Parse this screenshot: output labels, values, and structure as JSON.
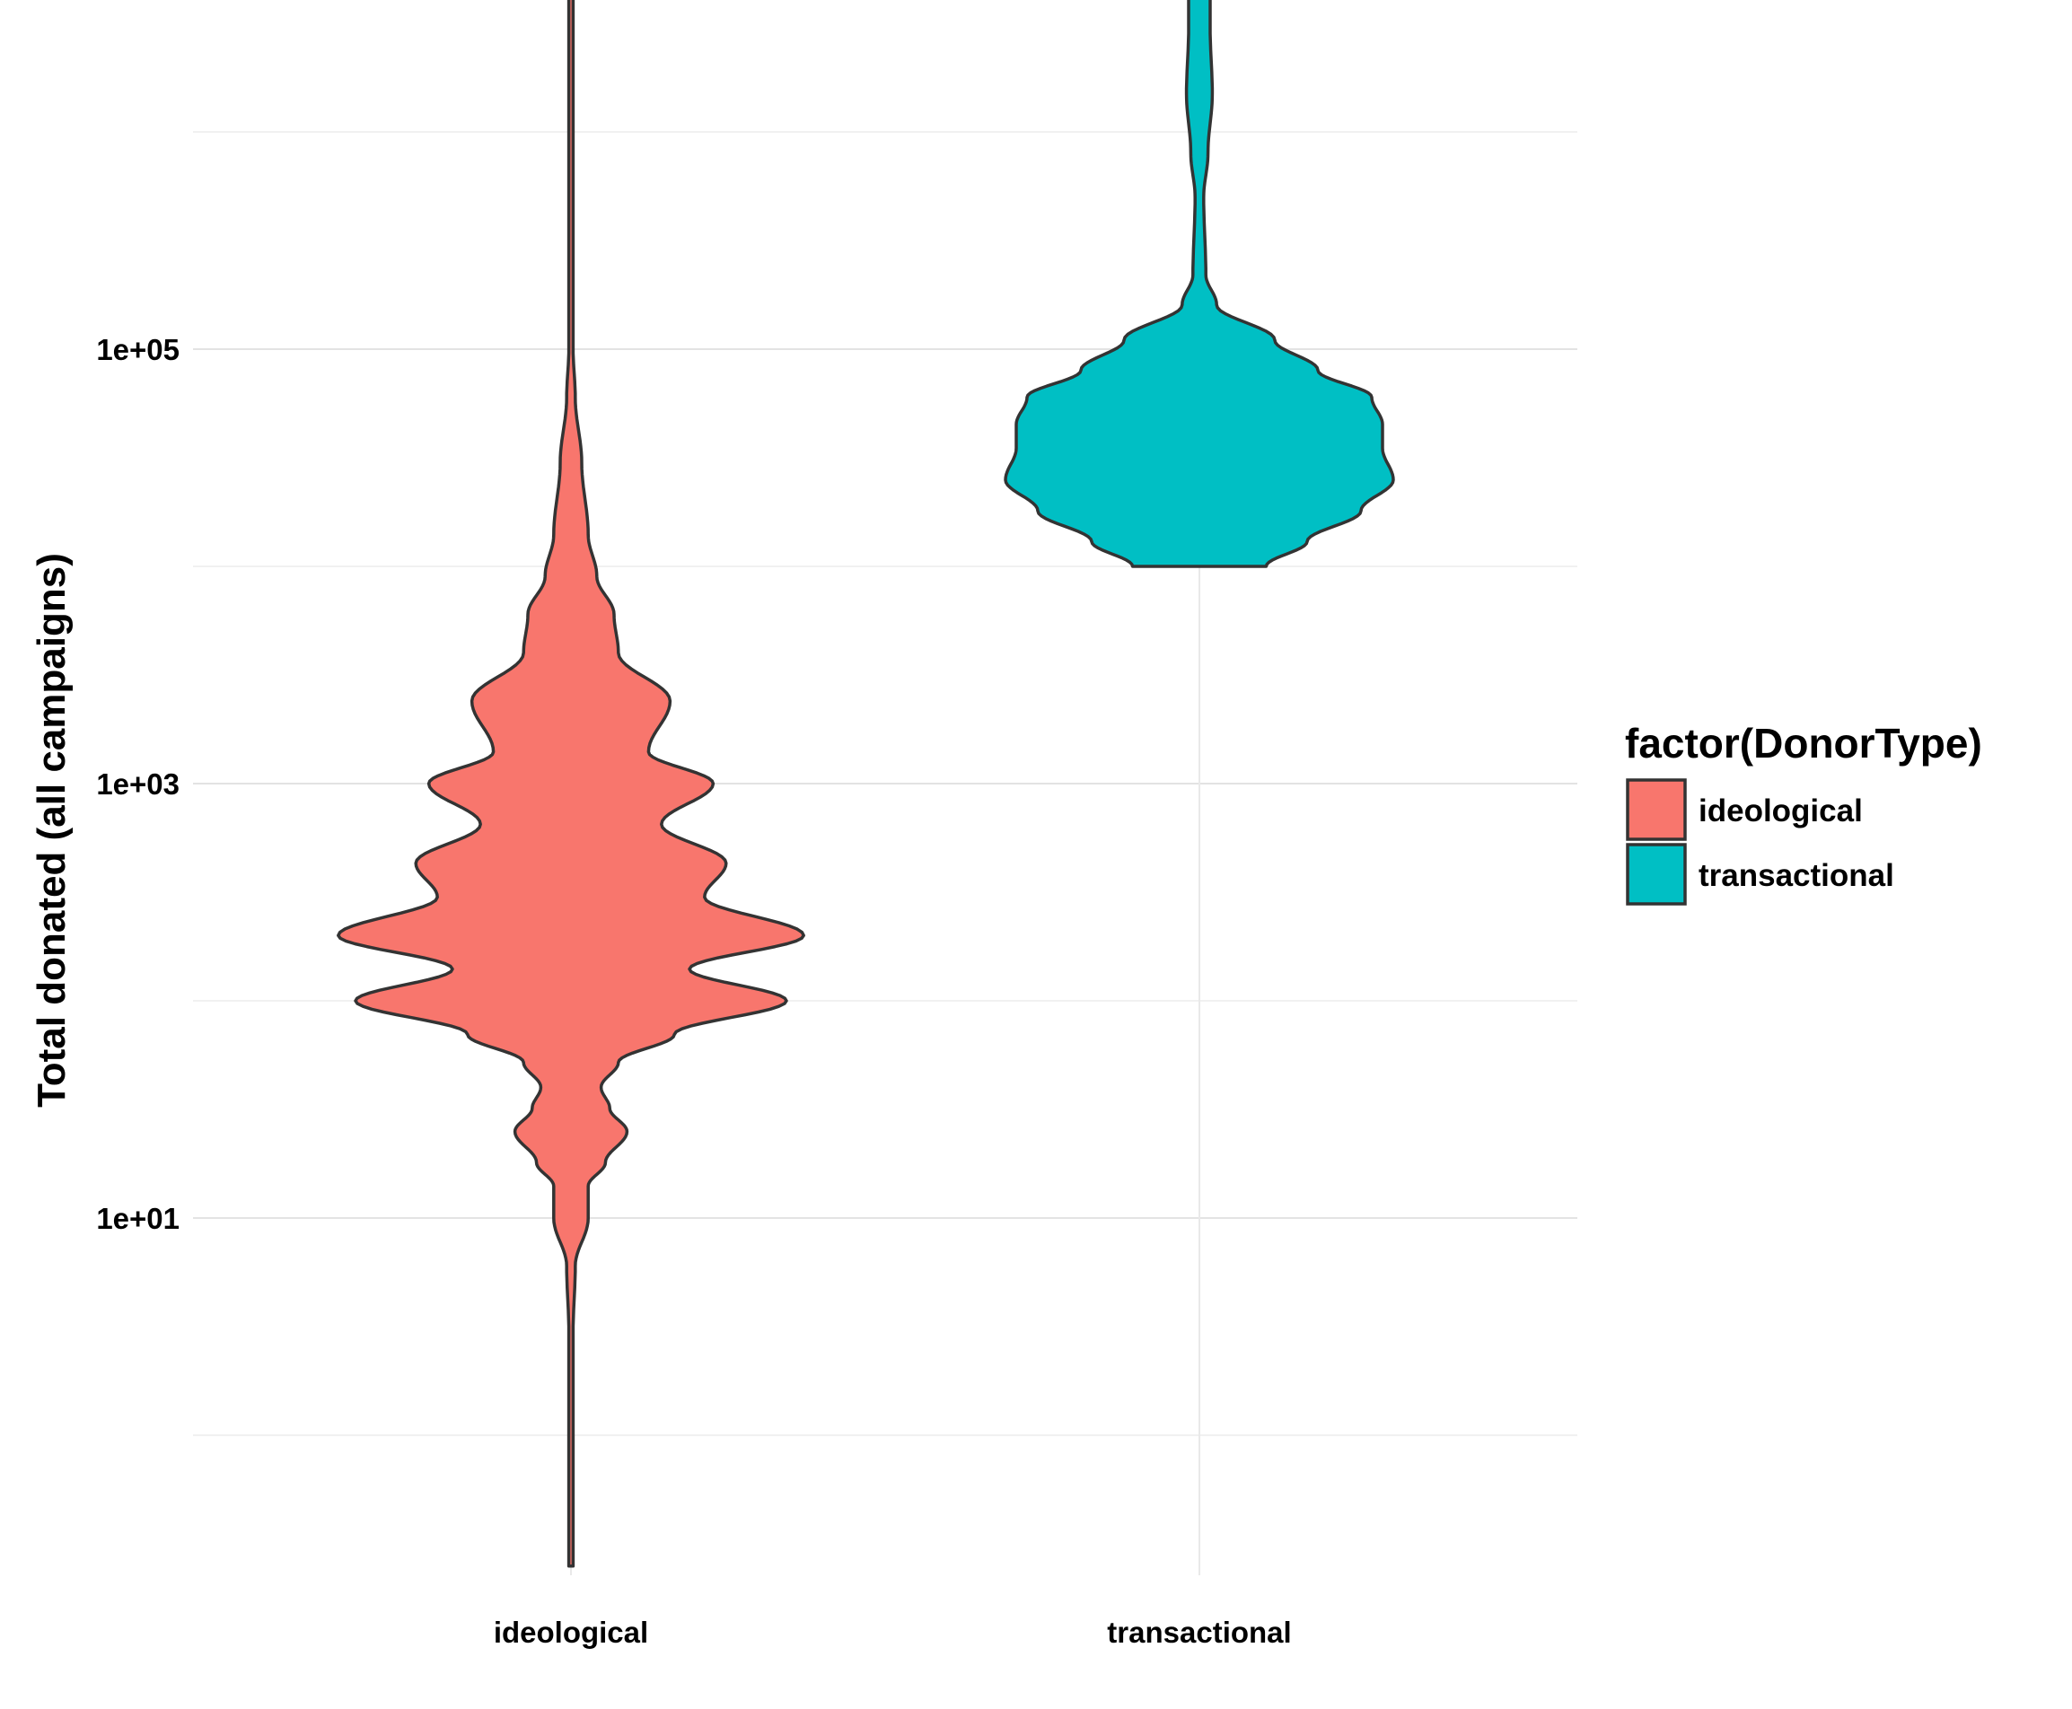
{
  "chart_data": {
    "type": "violin",
    "title": "",
    "xlabel": "",
    "ylabel": "Total donated (all campaigns)",
    "y_scale": "log10",
    "ylim": [
      0.2,
      8000000
    ],
    "y_ticks": [
      10,
      1000,
      100000
    ],
    "y_tick_labels": [
      "1e+01",
      "1e+03",
      "1e+05"
    ],
    "categories": [
      "ideological",
      "transactional"
    ],
    "grid": true,
    "legend": {
      "title": "factor(DonorType)",
      "position": "right",
      "entries": [
        "ideological",
        "transactional"
      ]
    },
    "colors": {
      "ideological": "#F8766D",
      "transactional": "#00BFC4",
      "outline": "#333333"
    },
    "series": [
      {
        "name": "ideological",
        "range": [
          0.25,
          5000000
        ],
        "density": [
          [
            0.25,
            0.01
          ],
          [
            1,
            0.01
          ],
          [
            3,
            0.01
          ],
          [
            6,
            0.02
          ],
          [
            10,
            0.08
          ],
          [
            14,
            0.08
          ],
          [
            18,
            0.16
          ],
          [
            25,
            0.26
          ],
          [
            32,
            0.18
          ],
          [
            40,
            0.14
          ],
          [
            52,
            0.22
          ],
          [
            70,
            0.48
          ],
          [
            100,
            1.0
          ],
          [
            140,
            0.55
          ],
          [
            200,
            1.08
          ],
          [
            300,
            0.62
          ],
          [
            430,
            0.72
          ],
          [
            650,
            0.42
          ],
          [
            1000,
            0.66
          ],
          [
            1400,
            0.36
          ],
          [
            2400,
            0.46
          ],
          [
            4000,
            0.22
          ],
          [
            6000,
            0.2
          ],
          [
            9000,
            0.12
          ],
          [
            14000,
            0.08
          ],
          [
            30000,
            0.05
          ],
          [
            60000,
            0.02
          ],
          [
            100000,
            0.01
          ],
          [
            1000000,
            0.01
          ],
          [
            5000000,
            0.01
          ]
        ]
      },
      {
        "name": "transactional",
        "range": [
          10000,
          4500000
        ],
        "density": [
          [
            10000,
            0.31
          ],
          [
            13000,
            0.5
          ],
          [
            18000,
            0.75
          ],
          [
            25000,
            0.9
          ],
          [
            35000,
            0.85
          ],
          [
            45000,
            0.85
          ],
          [
            60000,
            0.8
          ],
          [
            80000,
            0.55
          ],
          [
            110000,
            0.35
          ],
          [
            160000,
            0.08
          ],
          [
            220000,
            0.03
          ],
          [
            500000,
            0.02
          ],
          [
            800000,
            0.04
          ],
          [
            1500000,
            0.06
          ],
          [
            3000000,
            0.05
          ],
          [
            4500000,
            0.05
          ]
        ]
      }
    ]
  }
}
